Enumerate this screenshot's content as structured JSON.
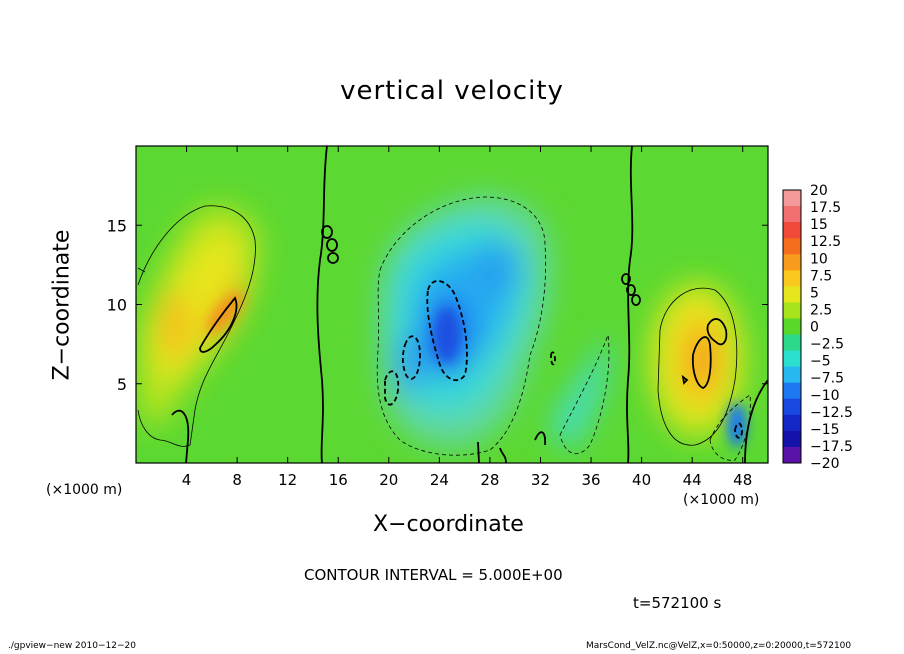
{
  "chart_data": {
    "type": "heatmap",
    "title": "vertical velocity",
    "xlabel": "X−coordinate",
    "ylabel": "Z−coordinate",
    "x_unit_left": "(×1000 m)",
    "x_unit_right": "(×1000 m)",
    "xlim": [
      0,
      50
    ],
    "ylim": [
      0,
      20
    ],
    "x_ticks": [
      4,
      8,
      12,
      16,
      20,
      24,
      28,
      32,
      36,
      40,
      44,
      48
    ],
    "y_ticks": [
      5,
      10,
      15
    ],
    "colorbar": {
      "labels": [
        "20",
        "17.5",
        "15",
        "12.5",
        "10",
        "7.5",
        "5",
        "2.5",
        "0",
        "−2.5",
        "−5",
        "−7.5",
        "−10",
        "−12.5",
        "−15",
        "−17.5",
        "−20"
      ],
      "colors": [
        "#f49a9a",
        "#f26f6f",
        "#f24a3a",
        "#f36d1c",
        "#f89b1c",
        "#f8c81c",
        "#e6e61c",
        "#a8e41c",
        "#5ad82a",
        "#2cd88c",
        "#2ce0d0",
        "#28b8f0",
        "#1e78f0",
        "#1848e0",
        "#1428c8",
        "#1412a8",
        "#5a12a8"
      ]
    },
    "contour_interval": "CONTOUR INTERVAL = 5.000E+00",
    "time_label": "t=572100 s",
    "cells": [
      {
        "x": 7.5,
        "z": 10.5,
        "w": 8
      },
      {
        "x": 3.0,
        "z": 8.5,
        "w": 6
      },
      {
        "x": 45.0,
        "z": 7.0,
        "w": 9
      },
      {
        "x": 24.5,
        "z": 8.0,
        "w": -12
      },
      {
        "x": 21.5,
        "z": 6.0,
        "w": -8
      },
      {
        "x": 27.5,
        "z": 11.0,
        "w": -6
      },
      {
        "x": 47.5,
        "z": 3.0,
        "w": -8
      }
    ]
  },
  "footer": {
    "left": "./gpview−new  2010−12−20",
    "right": "MarsCond_VelZ.nc@VelZ,x=0:50000,z=0:20000,t=572100"
  },
  "colors": {
    "background_field": "#5cd832",
    "frame": "#000000"
  }
}
